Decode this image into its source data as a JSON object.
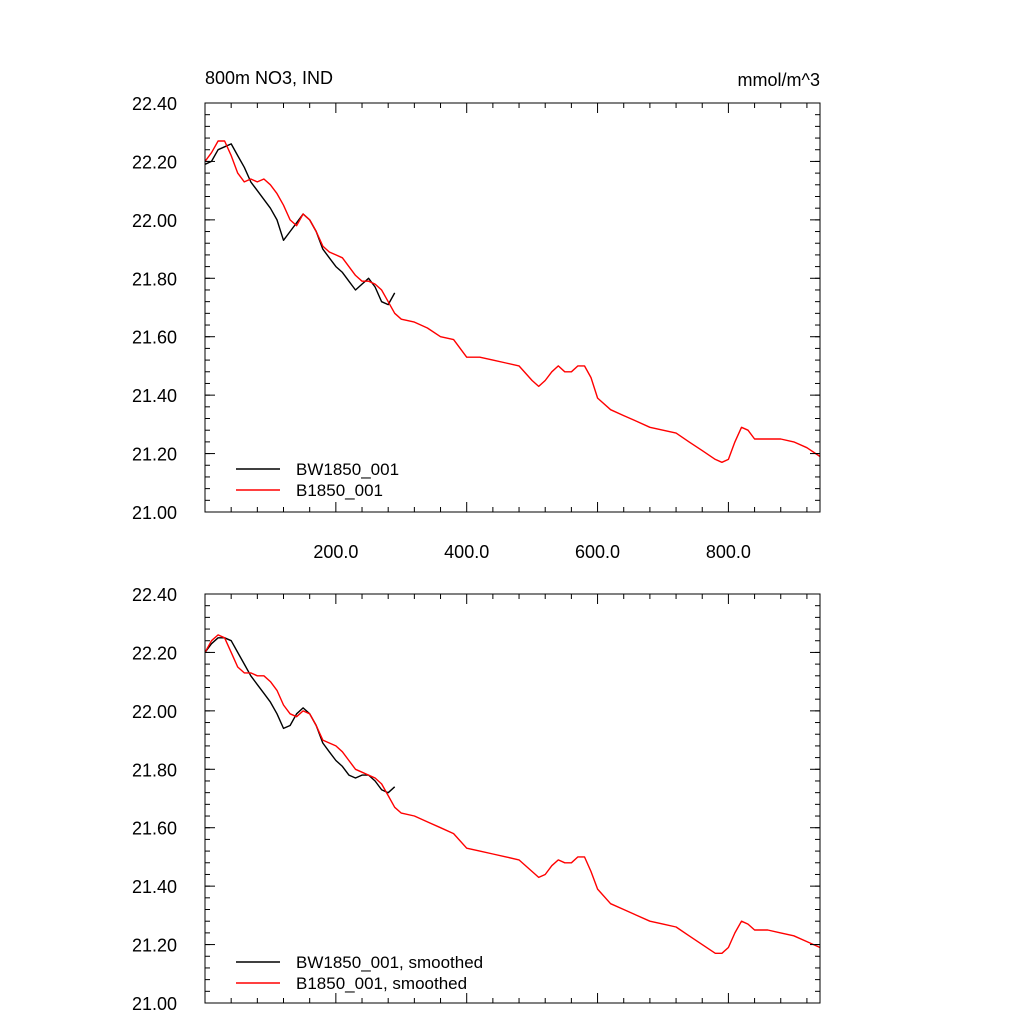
{
  "figure": {
    "title_left": "800m NO3, IND",
    "title_right": "mmol/m^3"
  },
  "chart_data": [
    {
      "type": "line",
      "title": "800m NO3, IND",
      "units": "mmol/m^3",
      "xlim": [
        0,
        940
      ],
      "ylim": [
        21.0,
        22.4
      ],
      "xticks": [
        200,
        400,
        600,
        800
      ],
      "xtick_labels": [
        "200.0",
        "400.0",
        "600.0",
        "800.0"
      ],
      "yticks": [
        21.0,
        21.2,
        21.4,
        21.6,
        21.8,
        22.0,
        22.2,
        22.4
      ],
      "ytick_labels": [
        "21.00",
        "21.20",
        "21.40",
        "21.60",
        "21.80",
        "22.00",
        "22.20",
        "22.40"
      ],
      "grid": false,
      "legend": "bottom-left",
      "series": [
        {
          "name": "BW1850_001",
          "color": "#000000",
          "x": [
            0,
            10,
            20,
            30,
            40,
            50,
            60,
            70,
            80,
            90,
            100,
            110,
            120,
            130,
            140,
            150,
            160,
            170,
            180,
            190,
            200,
            210,
            220,
            230,
            240,
            250,
            260,
            270,
            280,
            290
          ],
          "y": [
            22.19,
            22.2,
            22.24,
            22.25,
            22.26,
            22.22,
            22.18,
            22.13,
            22.1,
            22.07,
            22.04,
            22.0,
            21.93,
            21.96,
            21.99,
            22.02,
            22.0,
            21.96,
            21.9,
            21.87,
            21.84,
            21.82,
            21.79,
            21.76,
            21.78,
            21.8,
            21.77,
            21.72,
            21.71,
            21.75
          ]
        },
        {
          "name": "B1850_001",
          "color": "#ff0000",
          "x": [
            0,
            10,
            20,
            30,
            40,
            50,
            60,
            70,
            80,
            90,
            100,
            110,
            120,
            130,
            140,
            150,
            160,
            170,
            180,
            190,
            200,
            210,
            220,
            230,
            240,
            250,
            260,
            270,
            280,
            290,
            300,
            320,
            340,
            360,
            380,
            400,
            420,
            440,
            460,
            480,
            500,
            510,
            520,
            530,
            540,
            550,
            560,
            570,
            580,
            590,
            600,
            620,
            640,
            660,
            680,
            700,
            720,
            740,
            760,
            780,
            790,
            800,
            810,
            820,
            830,
            840,
            860,
            880,
            900,
            920,
            940
          ],
          "y": [
            22.2,
            22.23,
            22.27,
            22.27,
            22.22,
            22.16,
            22.13,
            22.14,
            22.13,
            22.14,
            22.12,
            22.09,
            22.05,
            22.0,
            21.98,
            22.02,
            22.0,
            21.96,
            21.91,
            21.89,
            21.88,
            21.87,
            21.84,
            21.81,
            21.79,
            21.79,
            21.78,
            21.76,
            21.72,
            21.68,
            21.66,
            21.65,
            21.63,
            21.6,
            21.59,
            21.53,
            21.53,
            21.52,
            21.51,
            21.5,
            21.45,
            21.43,
            21.45,
            21.48,
            21.5,
            21.48,
            21.48,
            21.5,
            21.5,
            21.46,
            21.39,
            21.35,
            21.33,
            21.31,
            21.29,
            21.28,
            21.27,
            21.24,
            21.21,
            21.18,
            21.17,
            21.18,
            21.24,
            21.29,
            21.28,
            21.25,
            21.25,
            21.25,
            21.24,
            21.22,
            21.19
          ]
        }
      ]
    },
    {
      "type": "line",
      "xlim": [
        0,
        940
      ],
      "ylim": [
        21.0,
        22.4
      ],
      "xticks": [
        200,
        400,
        600,
        800
      ],
      "xtick_labels": [],
      "yticks": [
        21.0,
        21.2,
        21.4,
        21.6,
        21.8,
        22.0,
        22.2,
        22.4
      ],
      "ytick_labels": [
        "21.00",
        "21.20",
        "21.40",
        "21.60",
        "21.80",
        "22.00",
        "22.20",
        "22.40"
      ],
      "grid": false,
      "legend": "bottom-left",
      "series": [
        {
          "name": "BW1850_001, smoothed",
          "color": "#000000",
          "x": [
            0,
            10,
            20,
            30,
            40,
            50,
            60,
            70,
            80,
            90,
            100,
            110,
            120,
            130,
            140,
            150,
            160,
            170,
            180,
            190,
            200,
            210,
            220,
            230,
            240,
            250,
            260,
            270,
            280,
            290
          ],
          "y": [
            22.2,
            22.23,
            22.25,
            22.25,
            22.24,
            22.2,
            22.16,
            22.12,
            22.09,
            22.06,
            22.03,
            21.99,
            21.94,
            21.95,
            21.99,
            22.01,
            21.99,
            21.95,
            21.89,
            21.86,
            21.83,
            21.81,
            21.78,
            21.77,
            21.78,
            21.78,
            21.76,
            21.73,
            21.72,
            21.74
          ]
        },
        {
          "name": "B1850_001, smoothed",
          "color": "#ff0000",
          "x": [
            0,
            10,
            20,
            30,
            40,
            50,
            60,
            70,
            80,
            90,
            100,
            110,
            120,
            130,
            140,
            150,
            160,
            170,
            180,
            190,
            200,
            210,
            220,
            230,
            240,
            250,
            260,
            270,
            280,
            290,
            300,
            320,
            340,
            360,
            380,
            400,
            420,
            440,
            460,
            480,
            500,
            510,
            520,
            530,
            540,
            550,
            560,
            570,
            580,
            590,
            600,
            620,
            640,
            660,
            680,
            700,
            720,
            740,
            760,
            780,
            790,
            800,
            810,
            820,
            830,
            840,
            860,
            880,
            900,
            920,
            940
          ],
          "y": [
            22.2,
            22.24,
            22.26,
            22.25,
            22.2,
            22.15,
            22.13,
            22.13,
            22.12,
            22.12,
            22.1,
            22.07,
            22.02,
            21.99,
            21.98,
            22.0,
            21.99,
            21.95,
            21.9,
            21.89,
            21.88,
            21.86,
            21.83,
            21.8,
            21.79,
            21.78,
            21.77,
            21.75,
            21.71,
            21.67,
            21.65,
            21.64,
            21.62,
            21.6,
            21.58,
            21.53,
            21.52,
            21.51,
            21.5,
            21.49,
            21.45,
            21.43,
            21.44,
            21.47,
            21.49,
            21.48,
            21.48,
            21.5,
            21.5,
            21.45,
            21.39,
            21.34,
            21.32,
            21.3,
            21.28,
            21.27,
            21.26,
            21.23,
            21.2,
            21.17,
            21.17,
            21.19,
            21.24,
            21.28,
            21.27,
            21.25,
            21.25,
            21.24,
            21.23,
            21.21,
            21.19
          ]
        }
      ]
    }
  ]
}
